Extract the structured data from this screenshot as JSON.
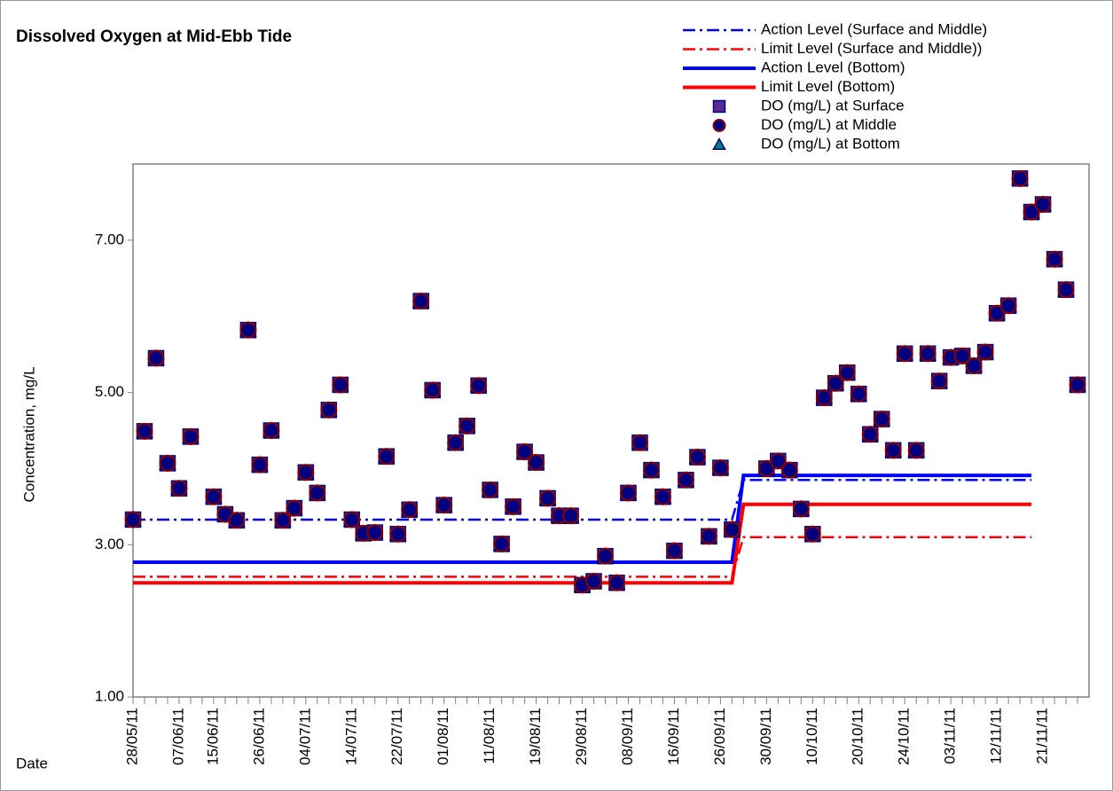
{
  "chart_data": {
    "type": "scatter",
    "title": "Dissolved Oxygen at Mid-Ebb Tide",
    "ylabel": "Concentration, mg/L",
    "xlabel": "Date",
    "ylim": [
      1,
      8
    ],
    "yticks": [
      {
        "value": 1,
        "label": "1.00"
      },
      {
        "value": 3,
        "label": "3.00"
      },
      {
        "value": 5,
        "label": "5.00"
      },
      {
        "value": 7,
        "label": "7.00"
      }
    ],
    "categories": [
      "28/05/11",
      null,
      null,
      null,
      "07/06/11",
      null,
      null,
      "15/06/11",
      null,
      null,
      null,
      "26/06/11",
      null,
      null,
      null,
      "04/07/11",
      null,
      null,
      null,
      "14/07/11",
      null,
      null,
      null,
      "22/07/11",
      null,
      null,
      null,
      "01/08/11",
      null,
      null,
      null,
      "11/08/11",
      null,
      null,
      null,
      "19/08/11",
      null,
      null,
      null,
      "29/08/11",
      null,
      null,
      null,
      "08/09/11",
      null,
      null,
      null,
      "16/09/11",
      null,
      null,
      null,
      "26/09/11",
      null,
      null,
      null,
      "30/09/11",
      null,
      null,
      null,
      "10/10/11",
      null,
      null,
      null,
      "20/10/11",
      null,
      null,
      null,
      "24/10/11",
      null,
      null,
      null,
      "03/11/11",
      null,
      null,
      null,
      "12/11/11",
      null,
      null,
      null,
      "21/11/11",
      null,
      null,
      null
    ],
    "series": [
      {
        "name": "Action Level (Surface and Middle)",
        "color": "#0000ff",
        "linestyle": "dashdot",
        "values": [
          3.33,
          3.33,
          3.33,
          3.33,
          3.33,
          3.33,
          3.33,
          3.33,
          3.33,
          3.33,
          3.33,
          3.33,
          3.33,
          3.33,
          3.33,
          3.33,
          3.33,
          3.33,
          3.33,
          3.33,
          3.33,
          3.33,
          3.33,
          3.33,
          3.33,
          3.33,
          3.33,
          3.33,
          3.33,
          3.33,
          3.33,
          3.33,
          3.33,
          3.33,
          3.33,
          3.33,
          3.33,
          3.33,
          3.33,
          3.33,
          3.33,
          3.33,
          3.33,
          3.33,
          3.33,
          3.33,
          3.33,
          3.33,
          3.33,
          3.33,
          3.33,
          3.33,
          3.33,
          3.85,
          3.85,
          3.85,
          3.85,
          3.85,
          3.85,
          3.85,
          3.85,
          3.85,
          3.85,
          3.85,
          3.85,
          3.85,
          3.85,
          3.85,
          3.85,
          3.85,
          3.85,
          3.85,
          3.85,
          3.85,
          3.85,
          3.85,
          3.85,
          3.85,
          3.85,
          null,
          null,
          null,
          null
        ]
      },
      {
        "name": "Limit Level (Surface and Middle))",
        "color": "#ff0000",
        "linestyle": "dashdot",
        "values": [
          2.58,
          2.58,
          2.58,
          2.58,
          2.58,
          2.58,
          2.58,
          2.58,
          2.58,
          2.58,
          2.58,
          2.58,
          2.58,
          2.58,
          2.58,
          2.58,
          2.58,
          2.58,
          2.58,
          2.58,
          2.58,
          2.58,
          2.58,
          2.58,
          2.58,
          2.58,
          2.58,
          2.58,
          2.58,
          2.58,
          2.58,
          2.58,
          2.58,
          2.58,
          2.58,
          2.58,
          2.58,
          2.58,
          2.58,
          2.58,
          2.58,
          2.58,
          2.58,
          2.58,
          2.58,
          2.58,
          2.58,
          2.58,
          2.58,
          2.58,
          2.58,
          2.58,
          2.58,
          3.1,
          3.1,
          3.1,
          3.1,
          3.1,
          3.1,
          3.1,
          3.1,
          3.1,
          3.1,
          3.1,
          3.1,
          3.1,
          3.1,
          3.1,
          3.1,
          3.1,
          3.1,
          3.1,
          3.1,
          3.1,
          3.1,
          3.1,
          3.1,
          3.1,
          3.1,
          null,
          null,
          null,
          null
        ]
      },
      {
        "name": "Action Level (Bottom)",
        "color": "#0000ff",
        "linestyle": "solid",
        "values": [
          2.77,
          2.77,
          2.77,
          2.77,
          2.77,
          2.77,
          2.77,
          2.77,
          2.77,
          2.77,
          2.77,
          2.77,
          2.77,
          2.77,
          2.77,
          2.77,
          2.77,
          2.77,
          2.77,
          2.77,
          2.77,
          2.77,
          2.77,
          2.77,
          2.77,
          2.77,
          2.77,
          2.77,
          2.77,
          2.77,
          2.77,
          2.77,
          2.77,
          2.77,
          2.77,
          2.77,
          2.77,
          2.77,
          2.77,
          2.77,
          2.77,
          2.77,
          2.77,
          2.77,
          2.77,
          2.77,
          2.77,
          2.77,
          2.77,
          2.77,
          2.77,
          2.77,
          2.77,
          3.91,
          3.91,
          3.91,
          3.91,
          3.91,
          3.91,
          3.91,
          3.91,
          3.91,
          3.91,
          3.91,
          3.91,
          3.91,
          3.91,
          3.91,
          3.91,
          3.91,
          3.91,
          3.91,
          3.91,
          3.91,
          3.91,
          3.91,
          3.91,
          3.91,
          3.91,
          null,
          null,
          null,
          null
        ]
      },
      {
        "name": "Limit Level (Bottom)",
        "color": "#ff0000",
        "linestyle": "solid",
        "values": [
          2.5,
          2.5,
          2.5,
          2.5,
          2.5,
          2.5,
          2.5,
          2.5,
          2.5,
          2.5,
          2.5,
          2.5,
          2.5,
          2.5,
          2.5,
          2.5,
          2.5,
          2.5,
          2.5,
          2.5,
          2.5,
          2.5,
          2.5,
          2.5,
          2.5,
          2.5,
          2.5,
          2.5,
          2.5,
          2.5,
          2.5,
          2.5,
          2.5,
          2.5,
          2.5,
          2.5,
          2.5,
          2.5,
          2.5,
          2.5,
          2.5,
          2.5,
          2.5,
          2.5,
          2.5,
          2.5,
          2.5,
          2.5,
          2.5,
          2.5,
          2.5,
          2.5,
          2.5,
          3.53,
          3.53,
          3.53,
          3.53,
          3.53,
          3.53,
          3.53,
          3.53,
          3.53,
          3.53,
          3.53,
          3.53,
          3.53,
          3.53,
          3.53,
          3.53,
          3.53,
          3.53,
          3.53,
          3.53,
          3.53,
          3.53,
          3.53,
          3.53,
          3.53,
          3.53,
          null,
          null,
          null,
          null
        ]
      },
      {
        "name": "DO (mg/L) at Surface",
        "color": "#5b2c8f",
        "marker": "square",
        "values": [
          3.33,
          4.49,
          5.45,
          4.07,
          3.74,
          4.42,
          null,
          3.63,
          3.4,
          3.32,
          5.82,
          4.05,
          4.5,
          3.32,
          3.48,
          3.95,
          3.68,
          4.77,
          5.1,
          3.33,
          3.15,
          3.16,
          4.16,
          3.14,
          3.46,
          6.2,
          5.03,
          3.52,
          4.34,
          4.56,
          5.09,
          3.72,
          3.01,
          3.5,
          4.22,
          4.08,
          3.61,
          3.38,
          3.38,
          2.47,
          2.52,
          2.85,
          2.5,
          3.68,
          4.34,
          3.98,
          3.63,
          2.92,
          3.85,
          4.15,
          3.11,
          4.01,
          3.2,
          null,
          null,
          4.0,
          4.1,
          3.98,
          3.47,
          3.14,
          4.93,
          5.12,
          5.26,
          4.98,
          4.45,
          4.65,
          4.24,
          5.51,
          4.24,
          5.51,
          5.15,
          5.46,
          5.48,
          5.35,
          5.53,
          6.04,
          6.14,
          7.81,
          7.37,
          7.47,
          6.75,
          6.35,
          5.1
        ]
      },
      {
        "name": "DO (mg/L) at Middle",
        "color": "#000080",
        "marker": "circle",
        "values": [
          3.33,
          4.49,
          5.45,
          4.07,
          3.74,
          4.42,
          null,
          3.63,
          3.4,
          3.32,
          5.82,
          4.05,
          4.5,
          3.32,
          3.48,
          3.95,
          3.68,
          4.77,
          5.1,
          3.33,
          3.15,
          3.16,
          4.16,
          3.14,
          3.46,
          6.2,
          5.03,
          3.52,
          4.34,
          4.56,
          5.09,
          3.72,
          3.01,
          3.5,
          4.22,
          4.08,
          3.61,
          3.38,
          3.38,
          2.47,
          2.52,
          2.85,
          2.5,
          3.68,
          4.34,
          3.98,
          3.63,
          2.92,
          3.85,
          4.15,
          3.11,
          4.01,
          3.2,
          null,
          null,
          4.0,
          4.1,
          3.98,
          3.47,
          3.14,
          4.93,
          5.12,
          5.26,
          4.98,
          4.45,
          4.65,
          4.24,
          5.51,
          4.24,
          5.51,
          5.15,
          5.46,
          5.48,
          5.35,
          5.53,
          6.04,
          6.14,
          7.81,
          7.37,
          7.47,
          6.75,
          6.35,
          5.1
        ]
      },
      {
        "name": "DO (mg/L) at Bottom",
        "color": "#008080",
        "marker": "triangle",
        "values": [
          3.33,
          4.49,
          5.45,
          4.07,
          3.74,
          4.42,
          null,
          3.63,
          3.4,
          3.32,
          5.82,
          4.05,
          4.5,
          3.32,
          3.48,
          3.95,
          3.68,
          4.77,
          5.1,
          3.33,
          3.15,
          3.16,
          4.16,
          3.14,
          3.46,
          6.2,
          5.03,
          3.52,
          4.34,
          4.56,
          5.09,
          3.72,
          3.01,
          3.5,
          4.22,
          4.08,
          3.61,
          3.38,
          3.38,
          2.47,
          2.52,
          2.85,
          2.5,
          3.68,
          4.34,
          3.98,
          3.63,
          2.92,
          3.85,
          4.15,
          3.11,
          4.01,
          3.2,
          null,
          null,
          4.0,
          4.1,
          3.98,
          3.47,
          3.14,
          4.93,
          5.12,
          5.26,
          4.98,
          4.45,
          4.65,
          4.24,
          5.51,
          4.24,
          5.51,
          5.15,
          5.46,
          5.48,
          5.35,
          5.53,
          6.04,
          6.14,
          7.81,
          7.37,
          7.47,
          6.75,
          6.35,
          5.1
        ]
      }
    ],
    "grid": false,
    "legend": "top-right"
  }
}
